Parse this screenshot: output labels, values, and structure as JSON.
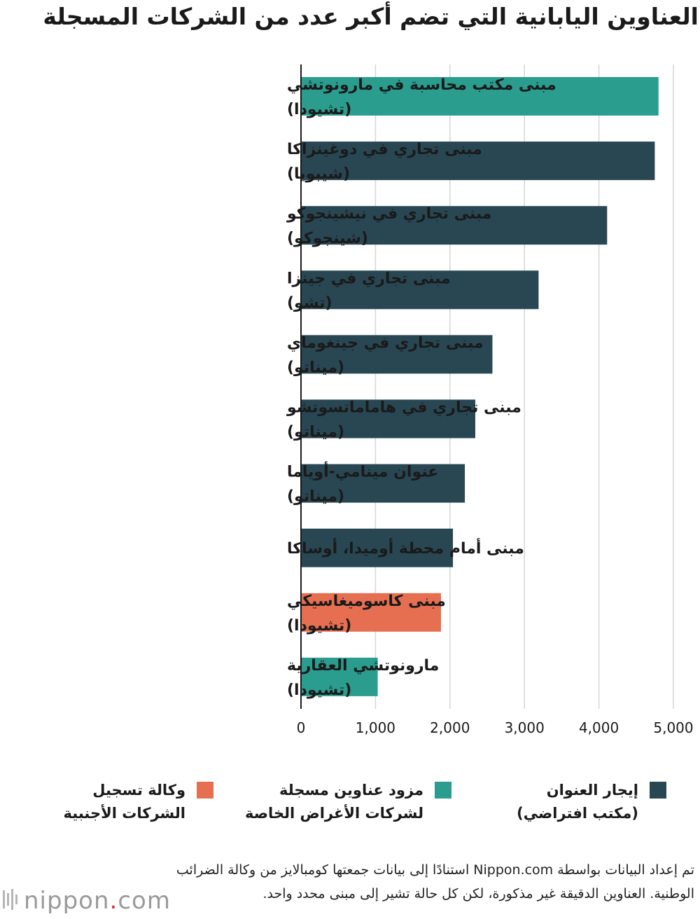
{
  "title": "العناوين اليابانية التي تضم أكبر عدد من الشركات المسجلة",
  "colors": {
    "rental": "#284753",
    "provider": "#2a9d8f",
    "foreign": "#e76f51",
    "grid": "#d6d6d6",
    "axis": "#1a1a1a"
  },
  "chart_data": {
    "type": "bar",
    "orientation": "horizontal",
    "categories": [
      [
        "مبنى مكتب محاسبة في مارونوتشي",
        "(تشيودا)"
      ],
      [
        "مبنى تجاري في دوغينزاكا",
        "(شيبويا)"
      ],
      [
        "مبنى تجاري في نيشينجوكو",
        "(شينجوكو)"
      ],
      [
        "مبنى تجاري في جينزا",
        "(تشو)"
      ],
      [
        "مبنى تجاري في جينغوماي",
        "(ميناتو)"
      ],
      [
        "مبنى تجاري في هاماماتسوتشو",
        "(ميناتو)"
      ],
      [
        "عنوان مينامي-أوياما",
        "(ميناتو)"
      ],
      [
        "مبنى أمام محطة أوميدا، أوساكا"
      ],
      [
        "مبنى كاسوميغاسيكي",
        "(تشيودا)"
      ],
      [
        "مارونوتشي العقارية",
        "(تشيودا)"
      ]
    ],
    "values": [
      4800,
      4750,
      4110,
      3190,
      2570,
      2340,
      2200,
      2040,
      1880,
      1030
    ],
    "category_type": [
      "provider",
      "rental",
      "rental",
      "rental",
      "rental",
      "rental",
      "rental",
      "rental",
      "foreign",
      "provider"
    ],
    "xlim": [
      0,
      5000
    ],
    "xticks": [
      0,
      1000,
      2000,
      3000,
      4000,
      5000
    ],
    "xtick_labels": [
      "0",
      "1,000",
      "2,000",
      "3,000",
      "4,000",
      "5,000"
    ],
    "grid": true,
    "legend_position": "bottom"
  },
  "legend": {
    "rental": [
      "إيجار العنوان",
      "(مكتب افتراضي)"
    ],
    "provider": [
      "مزود عناوين مسجلة",
      "لشركات الأغراض الخاصة"
    ],
    "foreign": [
      "وكالة تسجيل",
      "الشركات الأجنبية"
    ]
  },
  "source_note": "تم إعداد البيانات بواسطة Nippon.com استنادًا إلى بيانات جمعتها كومبالايز من وكالة الضرائب الوطنية. العناوين الدقيقة غير مذكورة، لكن كل حالة تشير إلى مبنى محدد واحد.",
  "logo": {
    "main": "nippon",
    "dot": ".",
    "suffix": "com"
  }
}
